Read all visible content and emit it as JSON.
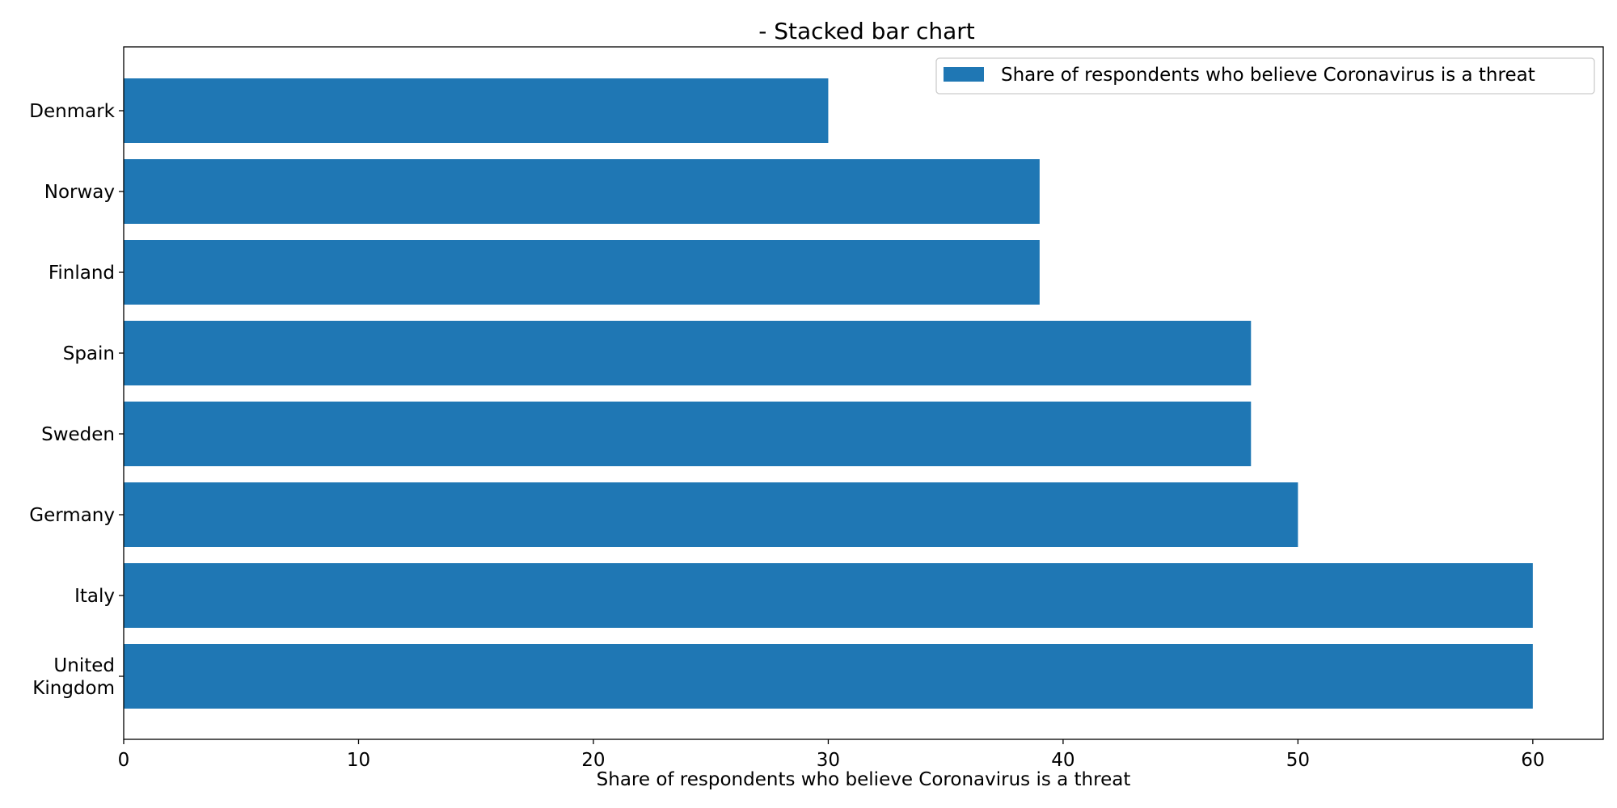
{
  "chart_data": {
    "type": "bar",
    "orientation": "horizontal",
    "title": "- Stacked bar chart",
    "xlabel": "Share of respondents who believe Coronavirus is a threat",
    "ylabel": "",
    "categories": [
      "Denmark",
      "Norway",
      "Finland",
      "Spain",
      "Sweden",
      "Germany",
      "Italy",
      "United Kingdom"
    ],
    "category_labels": [
      [
        "Denmark"
      ],
      [
        "Norway"
      ],
      [
        "Finland"
      ],
      [
        "Spain"
      ],
      [
        "Sweden"
      ],
      [
        "Germany"
      ],
      [
        "Italy"
      ],
      [
        "United",
        "Kingdom"
      ]
    ],
    "series": [
      {
        "name": "Share of respondents who believe Coronavirus is a threat",
        "color": "#1f77b4",
        "values": [
          30,
          39,
          39,
          48,
          48,
          50,
          60,
          60
        ]
      }
    ],
    "xlim": [
      0,
      63
    ],
    "xticks": [
      0,
      10,
      20,
      30,
      40,
      50,
      60
    ],
    "grid": false,
    "legend_position": "top-right"
  }
}
